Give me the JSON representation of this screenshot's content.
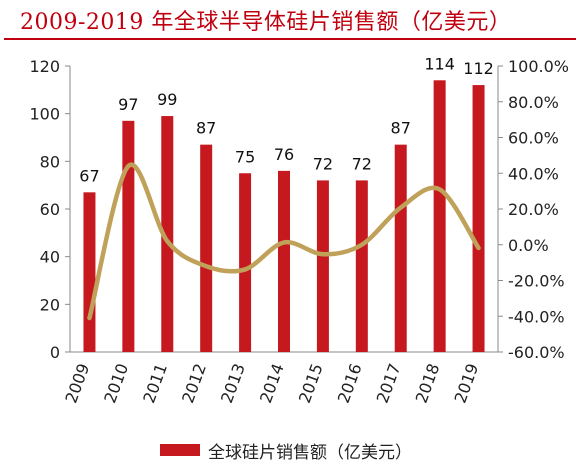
{
  "title": "2009-2019 年全球半导体硅片销售额（亿美元）",
  "colors": {
    "bar": "#c5191f",
    "line": "#c0a15a",
    "title": "#c0000f",
    "axis": "#8a8a8a"
  },
  "chart_data": {
    "type": "bar",
    "title": "2009-2019 年全球半导体硅片销售额（亿美元）",
    "categories": [
      "2009",
      "2010",
      "2011",
      "2012",
      "2013",
      "2014",
      "2015",
      "2016",
      "2017",
      "2018",
      "2019"
    ],
    "series": [
      {
        "name": "全球硅片销售额（亿美元）",
        "type": "bar",
        "axis": "left",
        "values": [
          67,
          97,
          99,
          87,
          75,
          76,
          72,
          72,
          87,
          114,
          112
        ]
      },
      {
        "name": "",
        "type": "line",
        "axis": "right",
        "values": [
          -41.0,
          44.0,
          2.0,
          -12.0,
          -13.8,
          1.3,
          -5.3,
          0.0,
          20.8,
          31.0,
          -1.8
        ]
      }
    ],
    "y_left": {
      "min": 0,
      "max": 120,
      "ticks": [
        "0",
        "20",
        "40",
        "60",
        "80",
        "100",
        "120"
      ]
    },
    "y_right": {
      "min": -60,
      "max": 100,
      "ticks": [
        "-60.0%",
        "-40.0%",
        "-20.0%",
        "0.0%",
        "20.0%",
        "40.0%",
        "60.0%",
        "80.0%",
        "100.0%"
      ]
    },
    "data_labels": [
      "67",
      "97",
      "99",
      "87",
      "75",
      "76",
      "72",
      "72",
      "87",
      "114",
      "112"
    ],
    "legend": {
      "position": "bottom",
      "label": "全球硅片销售额（亿美元）"
    },
    "grid": false
  }
}
